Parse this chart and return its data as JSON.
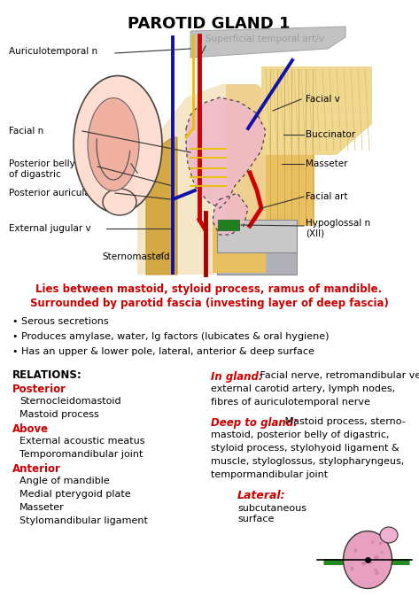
{
  "title": "PAROTID GLAND 1",
  "background_color": "#ffffff",
  "red_color": "#cc0000",
  "black_color": "#000000",
  "red_lines": [
    "Lies between mastoid, styloid process, ramus of mandible.",
    "Surrounded by parotid fascia (investing layer of deep fascia)"
  ],
  "bullets": [
    "Serous secretions",
    "Produces amylase, water, Ig factors (lubicates & oral hygiene)",
    "Has an upper & lower pole, lateral, anterior & deep surface"
  ],
  "relations_title": "RELATIONS:",
  "left_col": [
    {
      "text": "Posterior",
      "color": "#cc0000",
      "indent": 0
    },
    {
      "text": "Sternocleidomastoid",
      "color": "#000000",
      "indent": 1
    },
    {
      "text": "Mastoid process",
      "color": "#000000",
      "indent": 1
    },
    {
      "text": "Above",
      "color": "#cc0000",
      "indent": 0
    },
    {
      "text": "External acoustic meatus",
      "color": "#000000",
      "indent": 1
    },
    {
      "text": "Temporomandibular joint",
      "color": "#000000",
      "indent": 1
    },
    {
      "text": "Anterior",
      "color": "#cc0000",
      "indent": 0
    },
    {
      "text": "Angle of mandible",
      "color": "#000000",
      "indent": 1
    },
    {
      "text": "Medial pterygoid plate",
      "color": "#000000",
      "indent": 1
    },
    {
      "text": "Masseter",
      "color": "#000000",
      "indent": 1
    },
    {
      "text": "Stylomandibular ligament",
      "color": "#000000",
      "indent": 1
    }
  ],
  "ingland_label": "In gland:",
  "ingland_lines": [
    " Facial nerve, retromandibular vein,",
    "external carotid artery, lymph nodes,",
    "fibres of auriculotemporal nerve"
  ],
  "deep_label": "Deep to gland:",
  "deep_lines": [
    " Mastoid process, sterno-",
    "mastoid, posterior belly of digastric,",
    "styloid process, stylohyoid ligament &",
    "muscle, styloglossus, stylopharyngeus,",
    "tempormandibular joint"
  ],
  "lateral_label": "Lateral:",
  "lateral_text": "subcutaneous\nsurface"
}
